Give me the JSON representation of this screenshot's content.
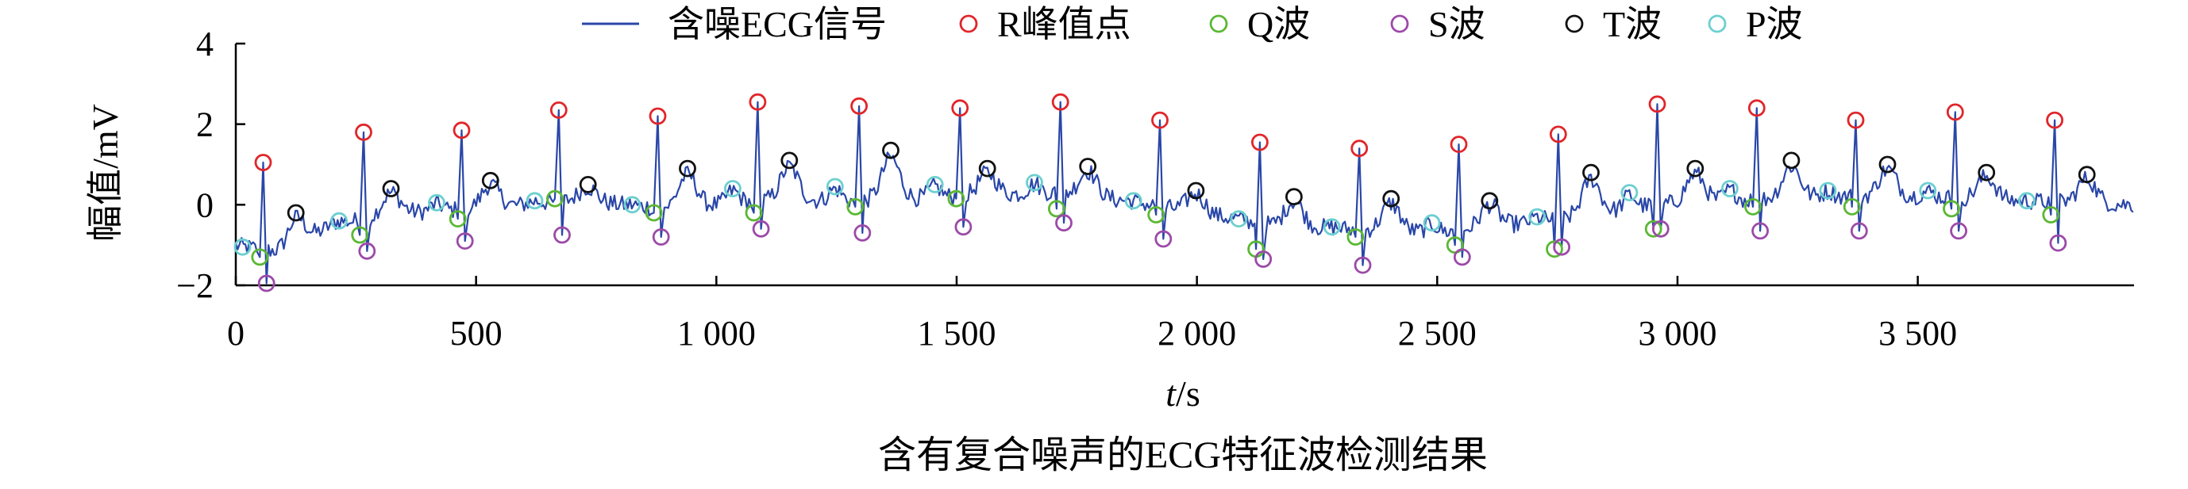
{
  "chart_data": {
    "type": "line",
    "title": "含有复合噪声的ECG特征波检测结果",
    "xlabel_italic": "t",
    "xlabel_unit": "/s",
    "ylabel": "幅值/mV",
    "xlim": [
      0,
      3950
    ],
    "ylim": [
      -2,
      4
    ],
    "xticks": [
      0,
      500,
      1000,
      1500,
      2000,
      2500,
      3000,
      3500
    ],
    "xtick_labels": [
      "0",
      "500",
      "1 000",
      "1 500",
      "2 000",
      "2 500",
      "3 000",
      "3 500"
    ],
    "yticks": [
      -2,
      0,
      2,
      4
    ],
    "ytick_labels": [
      "−2",
      "0",
      "2",
      "4"
    ],
    "legend_position": "top",
    "signal": {
      "name": "含噪ECG信号",
      "color": "#2a47a8",
      "noise_amplitude": 0.22,
      "baseline_points": [
        [
          0,
          -1.0
        ],
        [
          100,
          -1.2
        ],
        [
          200,
          -0.5
        ],
        [
          350,
          -0.2
        ],
        [
          500,
          -0.1
        ],
        [
          700,
          0.1
        ],
        [
          900,
          -0.1
        ],
        [
          1100,
          0.1
        ],
        [
          1300,
          0.1
        ],
        [
          1500,
          0.2
        ],
        [
          1700,
          0.3
        ],
        [
          1850,
          0.1
        ],
        [
          2000,
          -0.2
        ],
        [
          2150,
          -0.5
        ],
        [
          2300,
          -0.6
        ],
        [
          2500,
          -0.7
        ],
        [
          2650,
          -0.5
        ],
        [
          2800,
          -0.3
        ],
        [
          2950,
          0.0
        ],
        [
          3100,
          0.1
        ],
        [
          3300,
          0.2
        ],
        [
          3500,
          0.2
        ],
        [
          3700,
          0.1
        ],
        [
          3950,
          0.0
        ]
      ]
    },
    "series": [
      {
        "name": "R峰值点",
        "color": "#e0262a",
        "points": [
          [
            57,
            1.05
          ],
          [
            266,
            1.8
          ],
          [
            470,
            1.85
          ],
          [
            672,
            2.35
          ],
          [
            878,
            2.2
          ],
          [
            1086,
            2.55
          ],
          [
            1297,
            2.45
          ],
          [
            1507,
            2.4
          ],
          [
            1716,
            2.55
          ],
          [
            1923,
            2.1
          ],
          [
            2131,
            1.55
          ],
          [
            2338,
            1.4
          ],
          [
            2545,
            1.5
          ],
          [
            2752,
            1.75
          ],
          [
            2958,
            2.5
          ],
          [
            3165,
            2.4
          ],
          [
            3371,
            2.1
          ],
          [
            3578,
            2.3
          ],
          [
            3785,
            2.1
          ]
        ]
      },
      {
        "name": "Q波",
        "color": "#5ab833",
        "points": [
          [
            50,
            -1.3
          ],
          [
            258,
            -0.75
          ],
          [
            462,
            -0.35
          ],
          [
            664,
            0.15
          ],
          [
            870,
            -0.2
          ],
          [
            1078,
            -0.2
          ],
          [
            1289,
            -0.05
          ],
          [
            1499,
            0.15
          ],
          [
            1708,
            -0.1
          ],
          [
            1915,
            -0.25
          ],
          [
            2123,
            -1.1
          ],
          [
            2330,
            -0.8
          ],
          [
            2537,
            -1.0
          ],
          [
            2744,
            -1.1
          ],
          [
            2950,
            -0.6
          ],
          [
            3157,
            -0.05
          ],
          [
            3363,
            -0.05
          ],
          [
            3570,
            -0.1
          ],
          [
            3777,
            -0.25
          ]
        ]
      },
      {
        "name": "S波",
        "color": "#9c4aa8",
        "points": [
          [
            64,
            -1.95
          ],
          [
            273,
            -1.15
          ],
          [
            477,
            -0.9
          ],
          [
            679,
            -0.75
          ],
          [
            885,
            -0.8
          ],
          [
            1093,
            -0.6
          ],
          [
            1304,
            -0.7
          ],
          [
            1514,
            -0.55
          ],
          [
            1723,
            -0.45
          ],
          [
            1930,
            -0.85
          ],
          [
            2138,
            -1.35
          ],
          [
            2345,
            -1.5
          ],
          [
            2552,
            -1.3
          ],
          [
            2759,
            -1.05
          ],
          [
            2965,
            -0.6
          ],
          [
            3172,
            -0.65
          ],
          [
            3378,
            -0.65
          ],
          [
            3585,
            -0.65
          ],
          [
            3792,
            -0.95
          ]
        ]
      },
      {
        "name": "T波",
        "color": "#111111",
        "points": [
          [
            125,
            -0.2
          ],
          [
            323,
            0.4
          ],
          [
            530,
            0.6
          ],
          [
            733,
            0.5
          ],
          [
            940,
            0.9
          ],
          [
            1152,
            1.1
          ],
          [
            1363,
            1.35
          ],
          [
            1564,
            0.9
          ],
          [
            1773,
            0.95
          ],
          [
            1998,
            0.35
          ],
          [
            2202,
            0.2
          ],
          [
            2404,
            0.15
          ],
          [
            2609,
            0.1
          ],
          [
            2820,
            0.8
          ],
          [
            3037,
            0.9
          ],
          [
            3237,
            1.1
          ],
          [
            3437,
            1.0
          ],
          [
            3643,
            0.8
          ],
          [
            3852,
            0.75
          ]
        ]
      },
      {
        "name": "P波",
        "color": "#6ccfd0",
        "points": [
          [
            14,
            -1.05
          ],
          [
            215,
            -0.4
          ],
          [
            418,
            0.05
          ],
          [
            622,
            0.1
          ],
          [
            825,
            0.0
          ],
          [
            1034,
            0.4
          ],
          [
            1247,
            0.45
          ],
          [
            1455,
            0.5
          ],
          [
            1662,
            0.55
          ],
          [
            1868,
            0.1
          ],
          [
            2087,
            -0.35
          ],
          [
            2281,
            -0.55
          ],
          [
            2489,
            -0.45
          ],
          [
            2708,
            -0.3
          ],
          [
            2900,
            0.3
          ],
          [
            3109,
            0.4
          ],
          [
            3313,
            0.35
          ],
          [
            3521,
            0.35
          ],
          [
            3727,
            0.1
          ]
        ]
      }
    ]
  }
}
